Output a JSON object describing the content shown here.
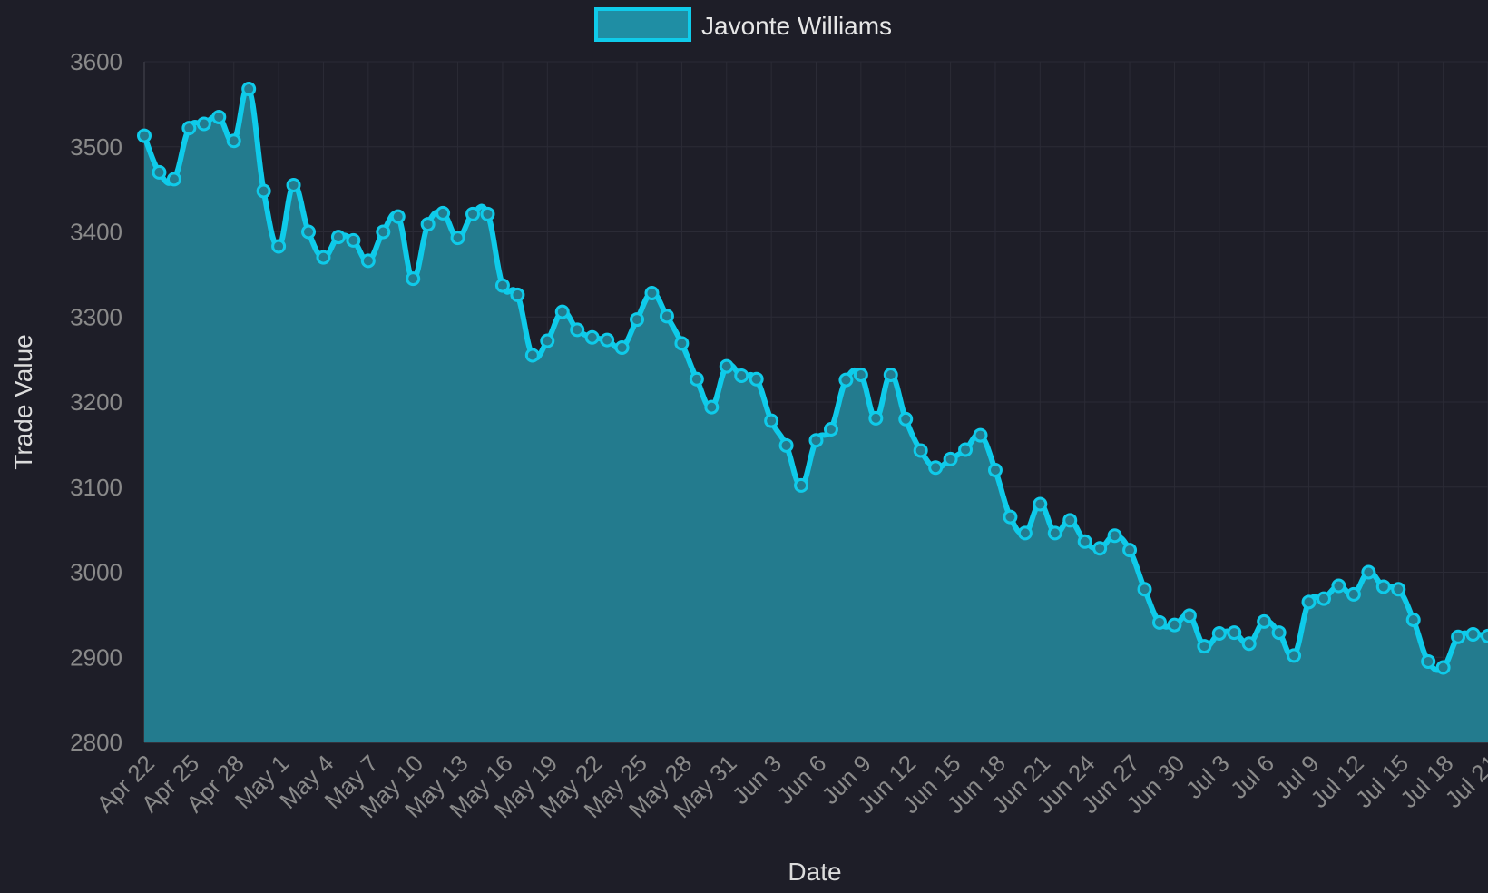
{
  "chart_data": {
    "type": "area",
    "title": "",
    "xlabel": "Date",
    "ylabel": "Trade Value",
    "ylim": [
      2800,
      3600
    ],
    "yticks": [
      2800,
      2900,
      3000,
      3100,
      3200,
      3300,
      3400,
      3500,
      3600
    ],
    "xticks": [
      "Apr 22",
      "Apr 25",
      "Apr 28",
      "May 1",
      "May 4",
      "May 7",
      "May 10",
      "May 13",
      "May 16",
      "May 19",
      "May 22",
      "May 25",
      "May 28",
      "May 31",
      "Jun 3",
      "Jun 6",
      "Jun 9",
      "Jun 12",
      "Jun 15",
      "Jun 18",
      "Jun 21",
      "Jun 24",
      "Jun 27",
      "Jun 30",
      "Jul 3",
      "Jul 6",
      "Jul 9",
      "Jul 12",
      "Jul 15",
      "Jul 18",
      "Jul 21"
    ],
    "grid": true,
    "legend": "top",
    "colors": {
      "line": "#0fcbea",
      "fill": "#237b8e",
      "legend_fill": "#1f8ea4",
      "background": "#1e1e28"
    },
    "x": [
      "Apr 22",
      "Apr 23",
      "Apr 24",
      "Apr 25",
      "Apr 26",
      "Apr 27",
      "Apr 28",
      "Apr 29",
      "Apr 30",
      "May 1",
      "May 2",
      "May 3",
      "May 4",
      "May 5",
      "May 6",
      "May 7",
      "May 8",
      "May 9",
      "May 10",
      "May 11",
      "May 12",
      "May 13",
      "May 14",
      "May 15",
      "May 16",
      "May 17",
      "May 18",
      "May 19",
      "May 20",
      "May 21",
      "May 22",
      "May 23",
      "May 24",
      "May 25",
      "May 26",
      "May 27",
      "May 28",
      "May 29",
      "May 30",
      "May 31",
      "Jun 1",
      "Jun 2",
      "Jun 3",
      "Jun 4",
      "Jun 5",
      "Jun 6",
      "Jun 7",
      "Jun 8",
      "Jun 9",
      "Jun 10",
      "Jun 11",
      "Jun 12",
      "Jun 13",
      "Jun 14",
      "Jun 15",
      "Jun 16",
      "Jun 17",
      "Jun 18",
      "Jun 19",
      "Jun 20",
      "Jun 21",
      "Jun 22",
      "Jun 23",
      "Jun 24",
      "Jun 25",
      "Jun 26",
      "Jun 27",
      "Jun 28",
      "Jun 29",
      "Jun 30",
      "Jul 1",
      "Jul 2",
      "Jul 3",
      "Jul 4",
      "Jul 5",
      "Jul 6",
      "Jul 7",
      "Jul 8",
      "Jul 9",
      "Jul 10",
      "Jul 11",
      "Jul 12",
      "Jul 13",
      "Jul 14",
      "Jul 15",
      "Jul 16",
      "Jul 17",
      "Jul 18",
      "Jul 19",
      "Jul 20",
      "Jul 21"
    ],
    "series": [
      {
        "name": "Javonte Williams",
        "values": [
          3513,
          3470,
          3462,
          3522,
          3527,
          3535,
          3507,
          3568,
          3448,
          3383,
          3455,
          3400,
          3370,
          3394,
          3390,
          3366,
          3400,
          3418,
          3345,
          3409,
          3422,
          3393,
          3421,
          3421,
          3337,
          3326,
          3255,
          3272,
          3306,
          3285,
          3276,
          3273,
          3264,
          3297,
          3328,
          3301,
          3269,
          3227,
          3194,
          3242,
          3231,
          3227,
          3178,
          3149,
          3102,
          3155,
          3168,
          3226,
          3232,
          3181,
          3232,
          3180,
          3143,
          3123,
          3133,
          3144,
          3161,
          3120,
          3065,
          3046,
          3080,
          3046,
          3061,
          3036,
          3028,
          3043,
          3026,
          2980,
          2941,
          2938,
          2949,
          2913,
          2928,
          2929,
          2916,
          2942,
          2929,
          2902,
          2965,
          2969,
          2984,
          2974,
          3000,
          2983,
          2980,
          2944,
          2895,
          2888,
          2924,
          2927,
          2925
        ]
      }
    ]
  }
}
